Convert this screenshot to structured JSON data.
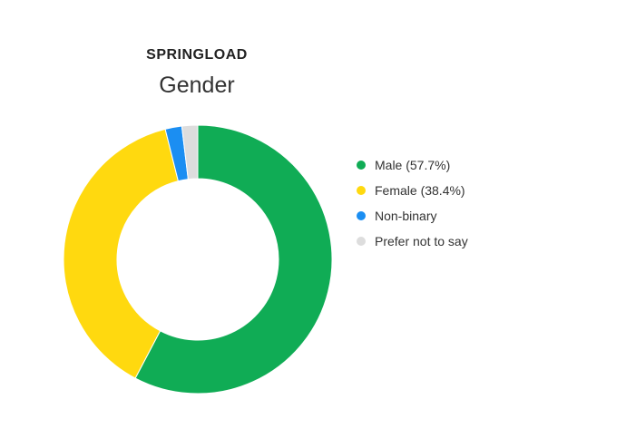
{
  "chart_data": {
    "type": "pie",
    "subtitle": "SPRINGLOAD",
    "title": "Gender",
    "donut": true,
    "legend_position": "right",
    "slices": [
      {
        "label": "Male (57.7%)",
        "value": 57.7,
        "color": "#10AC55"
      },
      {
        "label": "Female (38.4%)",
        "value": 38.4,
        "color": "#FFD90F"
      },
      {
        "label": "Non-binary",
        "value": 2.0,
        "color": "#1B8EF2"
      },
      {
        "label": "Prefer not to say",
        "value": 1.9,
        "color": "#DDDDDD"
      }
    ]
  }
}
